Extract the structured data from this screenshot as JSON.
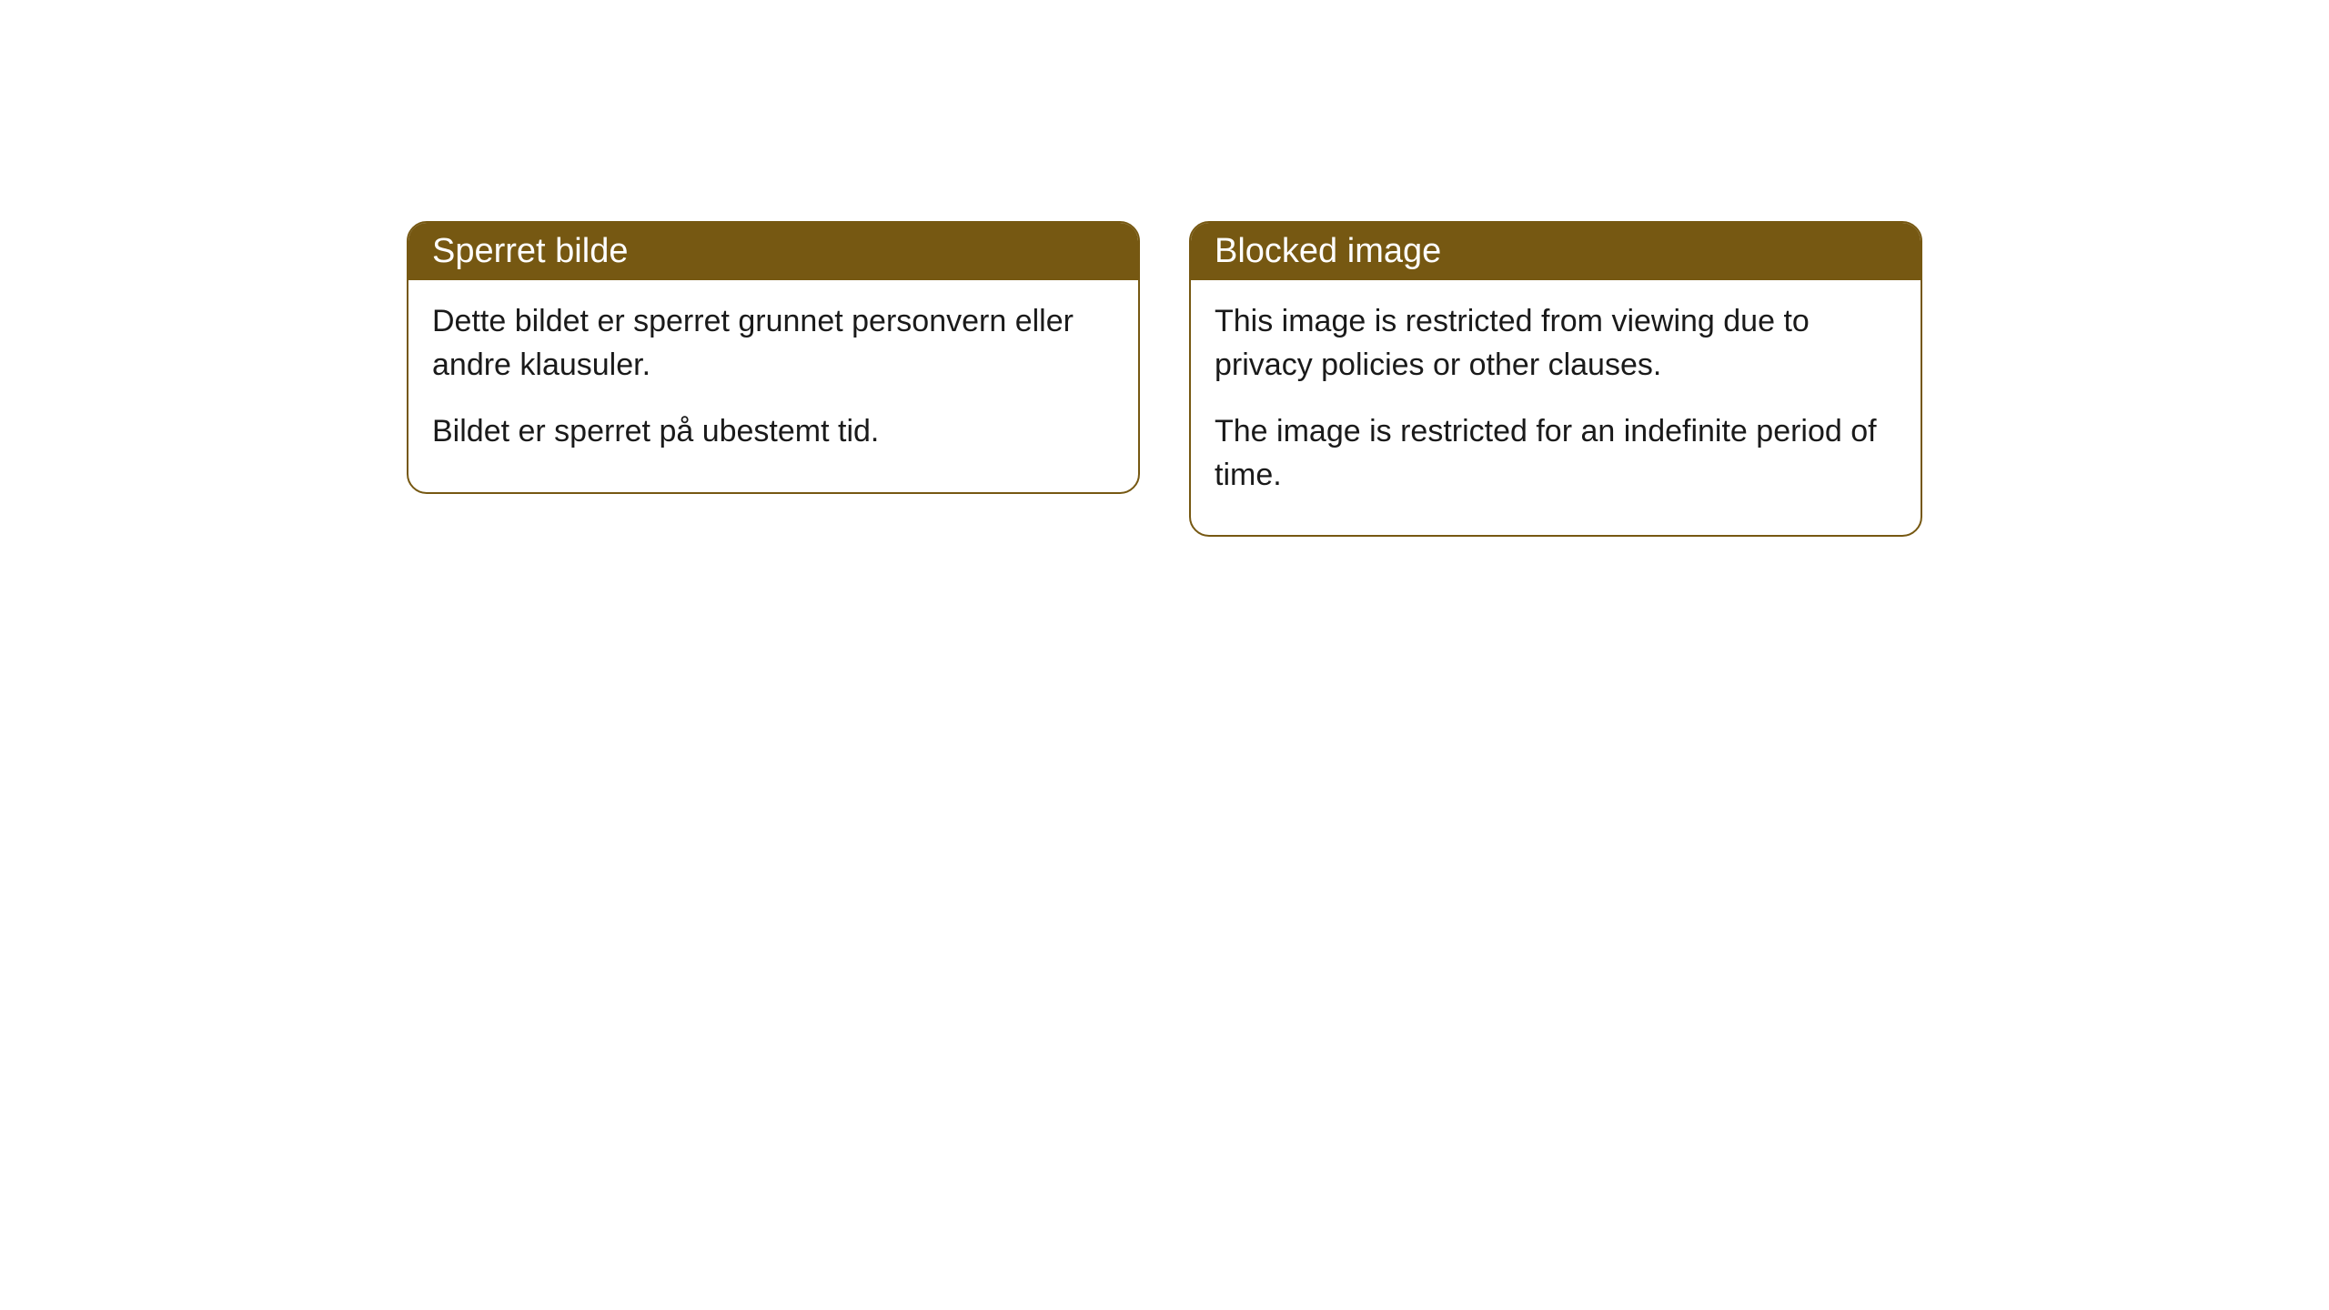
{
  "cards": [
    {
      "header": "Sperret bilde",
      "paragraph1": "Dette bildet er sperret grunnet personvern eller andre klausuler.",
      "paragraph2": "Bildet er sperret på ubestemt tid."
    },
    {
      "header": "Blocked image",
      "paragraph1": "This image is restricted from viewing due to privacy policies or other clauses.",
      "paragraph2": "The image is restricted for an indefinite period of time."
    }
  ],
  "styling": {
    "header_bg": "#765812",
    "header_text_color": "#ffffff",
    "border_color": "#765812",
    "body_bg": "#ffffff",
    "body_text_color": "#1a1a1a",
    "border_radius": 22,
    "header_fontsize": 38,
    "body_fontsize": 34
  }
}
